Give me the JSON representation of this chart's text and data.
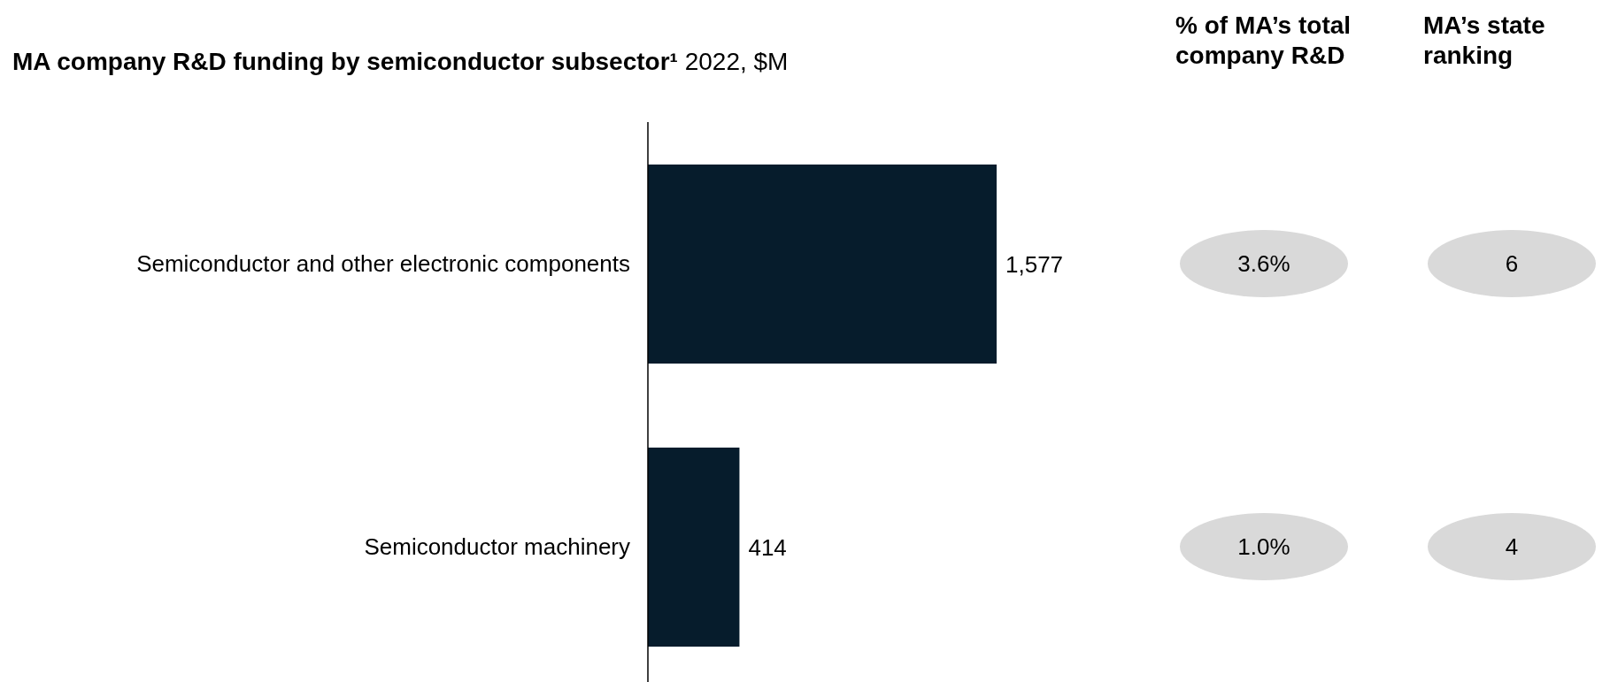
{
  "chart_data": {
    "type": "bar",
    "orientation": "horizontal",
    "title": "MA company R&D funding by semiconductor subsector¹",
    "subtitle": "2022, $M",
    "categories": [
      "Semiconductor and other electronic components",
      "Semiconductor machinery"
    ],
    "values": [
      1577,
      414
    ],
    "color": "#061c2c",
    "value_labels": [
      "1,577",
      "414"
    ],
    "annotations": [
      "% of MA’s total company R&D",
      "MA’s state ranking",
      "3.6%",
      "6",
      "1.0%",
      "4"
    ]
  }
}
